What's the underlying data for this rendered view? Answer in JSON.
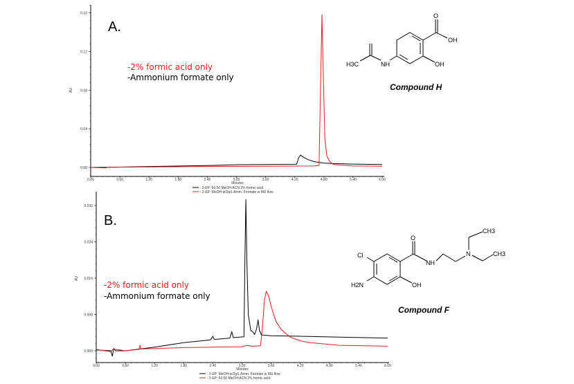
{
  "colors": {
    "series_black": "#000000",
    "series_red": "#e31a1c",
    "annotation_red": "#e31a1c"
  },
  "chart_data": [
    {
      "type": "line",
      "panel_label": "A.",
      "xlabel": "Minutes",
      "ylabel": "AU",
      "xlim": [
        0,
        6
      ],
      "ylim": [
        -0.01,
        0.17
      ],
      "xticks": [
        "0.00",
        "0.60",
        "1.20",
        "1.80",
        "2.40",
        "3.00",
        "3.60",
        "4.20",
        "4.80",
        "5.40",
        "6.00"
      ],
      "yticks": [
        "0.00",
        "0.04",
        "0.08",
        "0.12",
        "0.16"
      ],
      "grid": false,
      "legend_position": "bottom",
      "annotations": [
        "-2% formic acid only",
        "-Ammonium formate only"
      ],
      "compound": {
        "name": "Compound  H",
        "atoms": [
          "O",
          "OH",
          "H3C",
          "NH",
          "OH"
        ]
      },
      "series": [
        {
          "name": ": 2-EP: 50:50 MeOH:ACN 2% formic acid",
          "color": "#000000",
          "points": [
            [
              0,
              0
            ],
            [
              0.5,
              0.0003
            ],
            [
              1.2,
              0.001
            ],
            [
              2.4,
              0.002
            ],
            [
              3.0,
              0.0028
            ],
            [
              3.6,
              0.003
            ],
            [
              4.2,
              0.0032
            ],
            [
              4.24,
              0.0035
            ],
            [
              4.28,
              0.01
            ],
            [
              4.32,
              0.0128
            ],
            [
              4.38,
              0.0105
            ],
            [
              4.48,
              0.008
            ],
            [
              4.6,
              0.006
            ],
            [
              4.8,
              0.0045
            ],
            [
              5.0,
              0.004
            ],
            [
              5.4,
              0.0035
            ],
            [
              6.0,
              0.003
            ]
          ]
        },
        {
          "name": ": 2-EP: MeOH w/2g/L Amm. Formate w MU flow",
          "color": "#e31a1c",
          "points": [
            [
              0,
              0
            ],
            [
              0.3,
              -0.0005
            ],
            [
              0.35,
              0.0002
            ],
            [
              1.2,
              0.0005
            ],
            [
              2.4,
              0.001
            ],
            [
              3.6,
              0.0012
            ],
            [
              4.6,
              0.0015
            ],
            [
              4.7,
              0.002
            ],
            [
              4.73,
              0.08
            ],
            [
              4.76,
              0.158
            ],
            [
              4.79,
              0.09
            ],
            [
              4.82,
              0.03
            ],
            [
              4.86,
              0.012
            ],
            [
              4.92,
              0.006
            ],
            [
              5.0,
              0.003
            ],
            [
              5.4,
              0.0015
            ],
            [
              6.0,
              0.0012
            ]
          ]
        }
      ]
    },
    {
      "type": "line",
      "panel_label": "B.",
      "xlabel": "Minutes",
      "ylabel": "AU",
      "xlim": [
        0,
        6
      ],
      "ylim": [
        -0.0032,
        0.0335
      ],
      "xticks": [
        "0.00",
        "0.60",
        "1.20",
        "1.80",
        "2.40",
        "3.00",
        "3.60",
        "4.20",
        "4.80",
        "5.40",
        "6.00"
      ],
      "yticks": [
        "0.000",
        "0.008",
        "0.016",
        "0.024",
        "0.032"
      ],
      "grid": false,
      "legend_position": "bottom",
      "annotations": [
        "-2% formic acid only",
        "-Ammonium formate only"
      ],
      "compound": {
        "name": "Compound  F",
        "atoms": [
          "O",
          "Cl",
          "H2N",
          "OH",
          "NH",
          "N",
          "CH3",
          "CH3"
        ]
      },
      "series": [
        {
          "name": ": 2-EP: MeOH w/2g/L Amm. Formate w MU flow",
          "color": "#000000",
          "points": [
            [
              0,
              0.0002
            ],
            [
              0.3,
              0
            ],
            [
              0.33,
              -0.0012
            ],
            [
              0.36,
              0.0005
            ],
            [
              0.4,
              0
            ],
            [
              0.6,
              0
            ],
            [
              1.2,
              0.0008
            ],
            [
              1.8,
              0.0018
            ],
            [
              2.35,
              0.0024
            ],
            [
              2.4,
              0.0032
            ],
            [
              2.43,
              0.0025
            ],
            [
              2.75,
              0.0028
            ],
            [
              2.79,
              0.0042
            ],
            [
              2.82,
              0.0029
            ],
            [
              3.04,
              0.0031
            ],
            [
              3.06,
              0.02
            ],
            [
              3.08,
              0.0333
            ],
            [
              3.1,
              0.02
            ],
            [
              3.13,
              0.008
            ],
            [
              3.18,
              0.0045
            ],
            [
              3.22,
              0.0042
            ],
            [
              3.26,
              0.0036
            ],
            [
              3.3,
              0.0048
            ],
            [
              3.33,
              0.0068
            ],
            [
              3.36,
              0.0045
            ],
            [
              3.4,
              0.0035
            ],
            [
              3.6,
              0.0033
            ],
            [
              4.2,
              0.0032
            ],
            [
              5.0,
              0.003
            ],
            [
              6.0,
              0.0028
            ]
          ]
        },
        {
          "name": ": 2-EP: 50:50 MeOH:ACN 2% formic acid",
          "color": "#e31a1c",
          "points": [
            [
              0,
              0.0003
            ],
            [
              0.3,
              -0.0002
            ],
            [
              0.35,
              0.0004
            ],
            [
              0.6,
              0
            ],
            [
              0.88,
              0.0003
            ],
            [
              0.9,
              0.0012
            ],
            [
              0.92,
              0.0004
            ],
            [
              1.8,
              0.0007
            ],
            [
              3.0,
              0.0009
            ],
            [
              3.1,
              0.0012
            ],
            [
              3.2,
              0.001
            ],
            [
              3.38,
              0.0011
            ],
            [
              3.42,
              0.005
            ],
            [
              3.46,
              0.011
            ],
            [
              3.5,
              0.0131
            ],
            [
              3.55,
              0.012
            ],
            [
              3.62,
              0.009
            ],
            [
              3.7,
              0.0065
            ],
            [
              3.8,
              0.0048
            ],
            [
              3.9,
              0.0038
            ],
            [
              4.0,
              0.003
            ],
            [
              4.2,
              0.0022
            ],
            [
              4.4,
              0.0018
            ],
            [
              4.8,
              0.0014
            ],
            [
              5.0,
              0.0012
            ],
            [
              6.0,
              0.001
            ]
          ]
        }
      ]
    }
  ]
}
